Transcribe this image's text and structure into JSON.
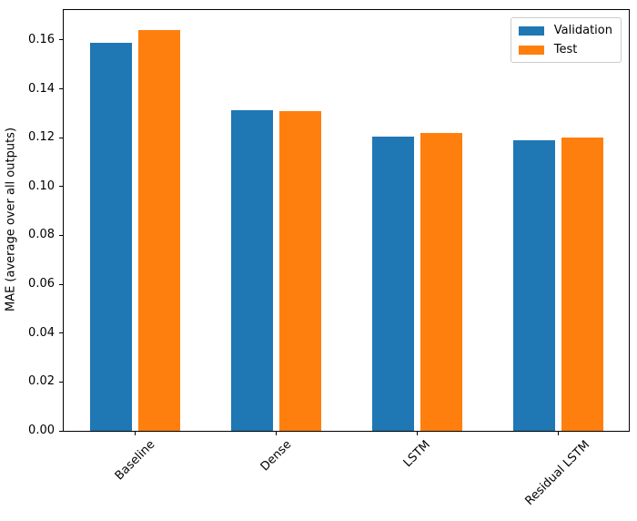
{
  "chart_data": {
    "type": "bar",
    "title": "",
    "xlabel": "",
    "ylabel": "MAE (average over all outputs)",
    "categories": [
      "Baseline",
      "Dense",
      "LSTM",
      "Residual LSTM"
    ],
    "series": [
      {
        "name": "Validation",
        "color": "#1f77b4",
        "values": [
          0.159,
          0.1312,
          0.1205,
          0.119
        ]
      },
      {
        "name": "Test",
        "color": "#ff7f0e",
        "values": [
          0.164,
          0.131,
          0.122,
          0.1202
        ]
      }
    ],
    "yticks": [
      0.0,
      0.02,
      0.04,
      0.06,
      0.08,
      0.1,
      0.12,
      0.14,
      0.16
    ],
    "ylim": [
      0,
      0.1723
    ],
    "x_tick_rotation_deg": 45,
    "grid": false,
    "legend_position": "upper-right",
    "background_color": "#ffffff",
    "spine_color": "#000000",
    "text_color": "#000000"
  }
}
